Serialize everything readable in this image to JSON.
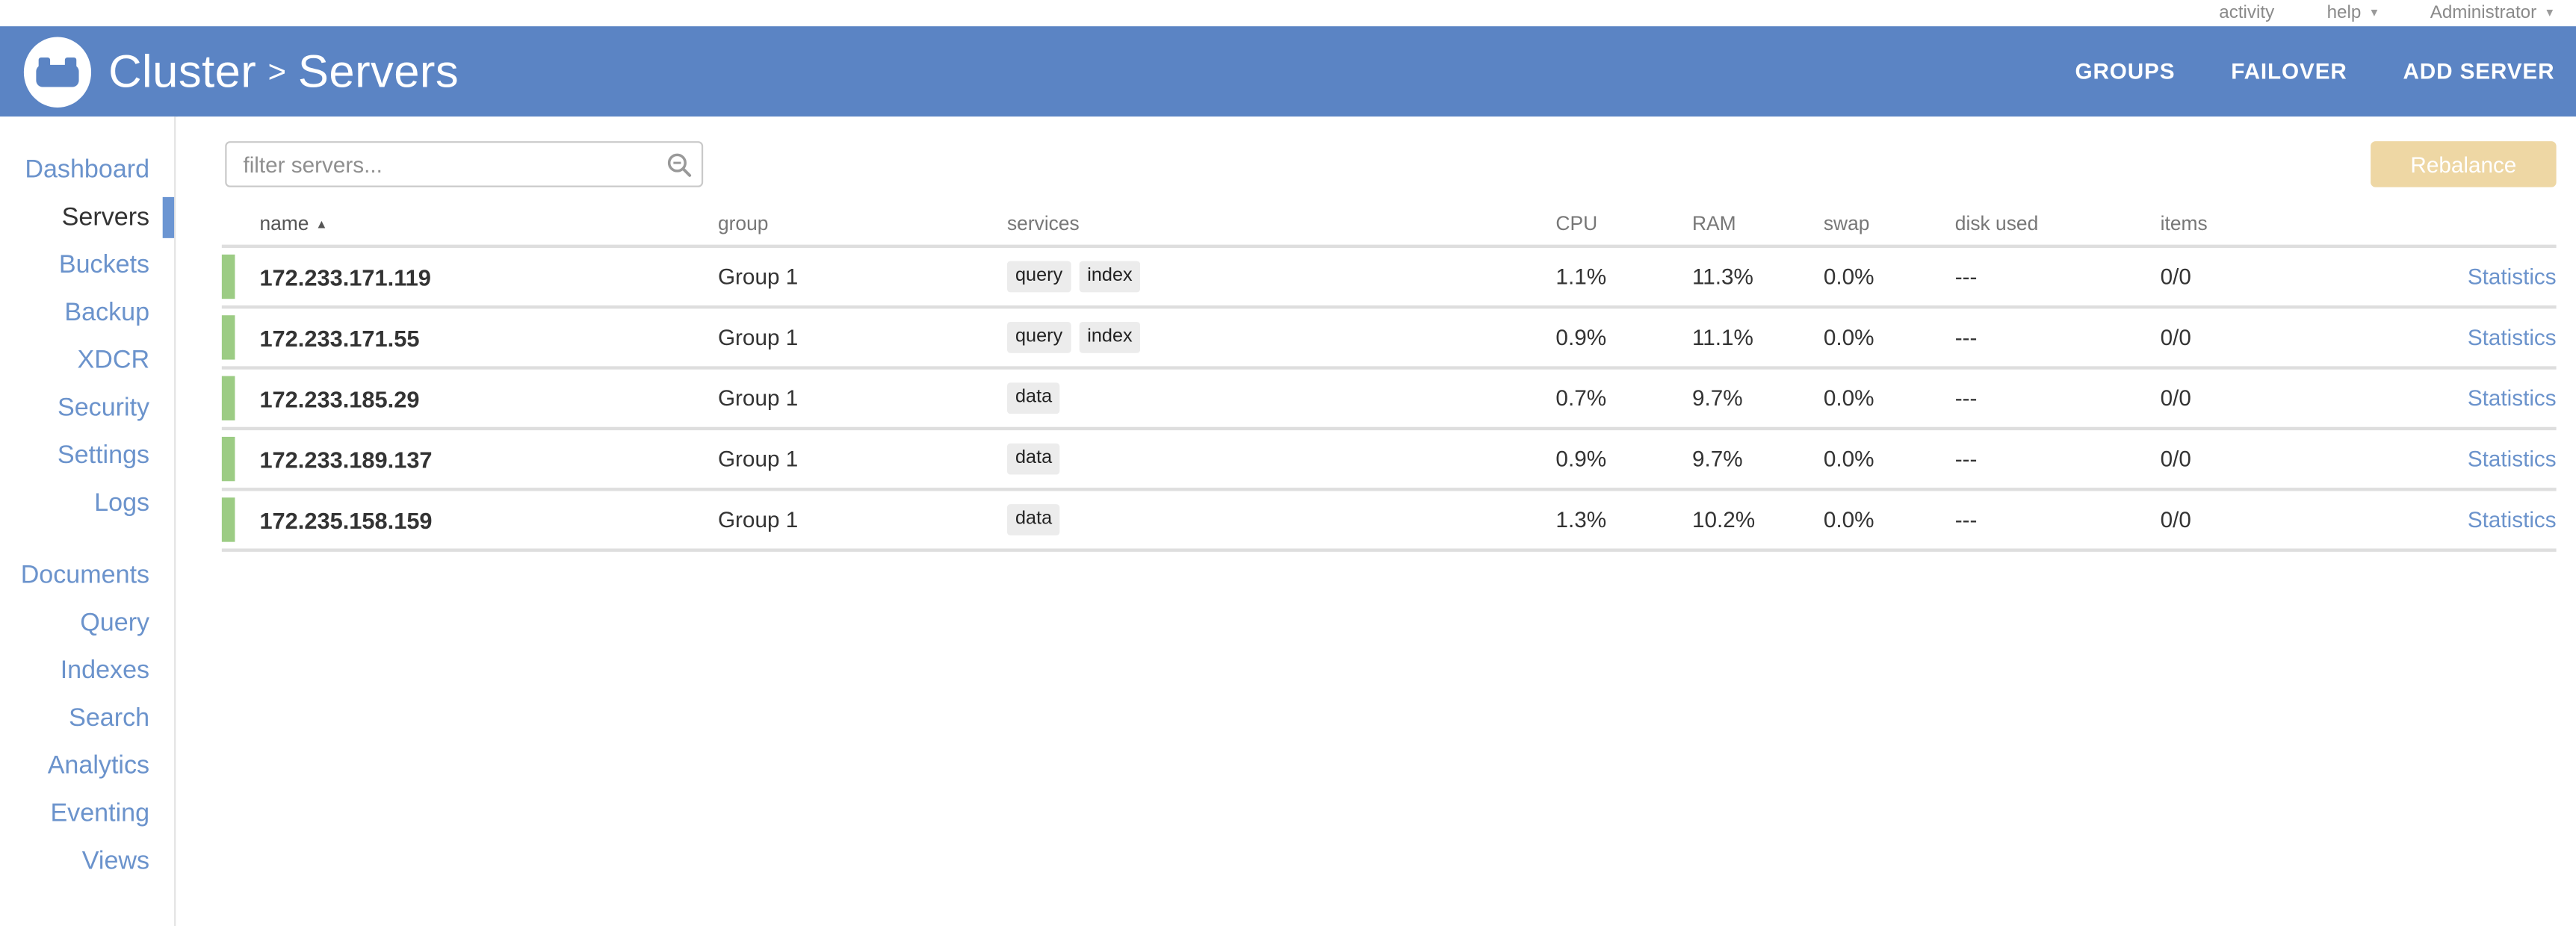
{
  "topbar": {
    "activity_label": "activity",
    "help_label": "help",
    "user_label": "Administrator"
  },
  "header": {
    "breadcrumb": {
      "cluster": "Cluster",
      "separator": ">",
      "page": "Servers"
    },
    "actions": {
      "groups": "GROUPS",
      "failover": "FAILOVER",
      "add_server": "ADD SERVER"
    }
  },
  "sidebar": {
    "active": "Servers",
    "groups": [
      [
        "Dashboard",
        "Servers",
        "Buckets",
        "Backup",
        "XDCR",
        "Security",
        "Settings",
        "Logs"
      ],
      [
        "Documents",
        "Query",
        "Indexes",
        "Search",
        "Analytics",
        "Eventing",
        "Views"
      ]
    ]
  },
  "toolbar": {
    "filter_placeholder": "filter servers...",
    "rebalance_label": "Rebalance"
  },
  "table": {
    "columns": {
      "name": "name",
      "group": "group",
      "services": "services",
      "cpu": "CPU",
      "ram": "RAM",
      "swap": "swap",
      "disk_used": "disk used",
      "items": "items"
    },
    "stats_label": "Statistics",
    "rows": [
      {
        "name": "172.233.171.119",
        "group": "Group 1",
        "services": [
          "query",
          "index"
        ],
        "cpu": "1.1%",
        "ram": "11.3%",
        "swap": "0.0%",
        "disk_used": "---",
        "items": "0/0"
      },
      {
        "name": "172.233.171.55",
        "group": "Group 1",
        "services": [
          "query",
          "index"
        ],
        "cpu": "0.9%",
        "ram": "11.1%",
        "swap": "0.0%",
        "disk_used": "---",
        "items": "0/0"
      },
      {
        "name": "172.233.185.29",
        "group": "Group 1",
        "services": [
          "data"
        ],
        "cpu": "0.7%",
        "ram": "9.7%",
        "swap": "0.0%",
        "disk_used": "---",
        "items": "0/0"
      },
      {
        "name": "172.233.189.137",
        "group": "Group 1",
        "services": [
          "data"
        ],
        "cpu": "0.9%",
        "ram": "9.7%",
        "swap": "0.0%",
        "disk_used": "---",
        "items": "0/0"
      },
      {
        "name": "172.235.158.159",
        "group": "Group 1",
        "services": [
          "data"
        ],
        "cpu": "1.3%",
        "ram": "10.2%",
        "swap": "0.0%",
        "disk_used": "---",
        "items": "0/0"
      }
    ]
  },
  "icons": {
    "caret_down": "▾",
    "sort_asc": "▲",
    "search": "magnifier",
    "logo": "couchbase-couch"
  },
  "colors": {
    "header_blue": "#5b84c4",
    "link_blue": "#6b93cc",
    "active_indicator": "#6b95d2",
    "row_green": "#9ccc84",
    "rebalance_bg": "#eed7a4",
    "pill_bg": "#ececec",
    "divider": "#dedede",
    "muted_text": "#8a8a8a"
  }
}
